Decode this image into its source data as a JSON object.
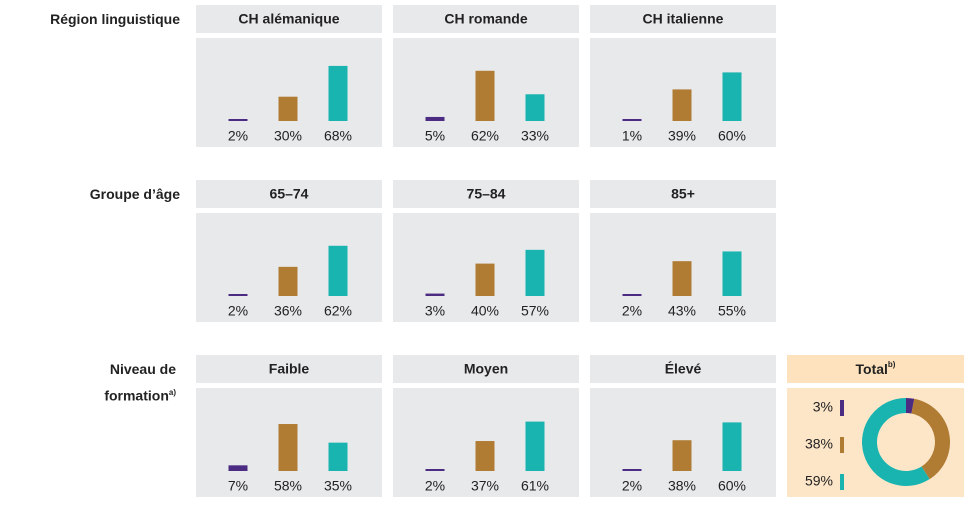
{
  "chart_data": [
    {
      "type": "bar",
      "colors": [
        "#4b2c82",
        "#b07c33",
        "#19b4b0"
      ],
      "groups": [
        {
          "label": "Région linguistique",
          "panels": [
            {
              "title": "CH alémanique",
              "values": [
                2,
                30,
                68
              ],
              "value_labels": [
                "2%",
                "30%",
                "68%"
              ]
            },
            {
              "title": "CH romande",
              "values": [
                5,
                62,
                33
              ],
              "value_labels": [
                "5%",
                "62%",
                "33%"
              ]
            },
            {
              "title": "CH italienne",
              "values": [
                1,
                39,
                60
              ],
              "value_labels": [
                "1%",
                "39%",
                "60%"
              ]
            }
          ]
        },
        {
          "label": "Groupe d’âge",
          "panels": [
            {
              "title": "65–74",
              "values": [
                2,
                36,
                62
              ],
              "value_labels": [
                "2%",
                "36%",
                "62%"
              ]
            },
            {
              "title": "75–84",
              "values": [
                3,
                40,
                57
              ],
              "value_labels": [
                "3%",
                "40%",
                "57%"
              ]
            },
            {
              "title": "85+",
              "values": [
                2,
                43,
                55
              ],
              "value_labels": [
                "2%",
                "43%",
                "55%"
              ]
            }
          ]
        },
        {
          "label": "Niveau de formation",
          "footnote": "a)",
          "panels": [
            {
              "title": "Faible",
              "values": [
                7,
                58,
                35
              ],
              "value_labels": [
                "7%",
                "58%",
                "35%"
              ]
            },
            {
              "title": "Moyen",
              "values": [
                2,
                37,
                61
              ],
              "value_labels": [
                "2%",
                "37%",
                "61%"
              ]
            },
            {
              "title": "Élevé",
              "values": [
                2,
                38,
                60
              ],
              "value_labels": [
                "2%",
                "38%",
                "60%"
              ]
            }
          ]
        }
      ]
    },
    {
      "type": "donut",
      "title": "Total",
      "footnote": "b)",
      "colors": [
        "#4b2c82",
        "#b07c33",
        "#19b4b0"
      ],
      "values": [
        3,
        38,
        59
      ],
      "value_labels": [
        "3%",
        "38%",
        "59%"
      ]
    }
  ]
}
